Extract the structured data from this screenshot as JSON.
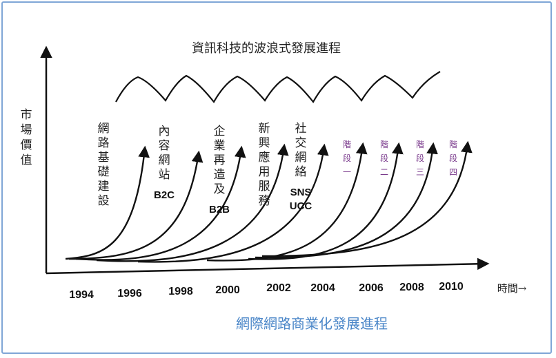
{
  "title_top": "資訊科技的波浪式發展進程",
  "title_bottom": "網際網路商業化發展進程",
  "y_axis_label": "市場價值",
  "x_axis_label": "時間→",
  "years": [
    "1994",
    "1996",
    "1998",
    "2000",
    "2002",
    "2004",
    "2006",
    "2008",
    "2010"
  ],
  "phases": [
    {
      "label": "網路基礎建設",
      "sub": ""
    },
    {
      "label": "內容網站",
      "sub": "B2C"
    },
    {
      "label": "企業再造及",
      "sub": "B2B"
    },
    {
      "label": "新興應用服務",
      "sub": ""
    },
    {
      "label": "社交網絡",
      "sub": "SNS UCC"
    },
    {
      "label": "階段一",
      "sub": ""
    },
    {
      "label": "階段二",
      "sub": ""
    },
    {
      "label": "階段三",
      "sub": ""
    },
    {
      "label": "階段四",
      "sub": ""
    }
  ],
  "colors": {
    "frame": "#7fa6d6",
    "line": "#111111",
    "future": "#7a3a8c",
    "bottom_title": "#4a86c8"
  }
}
